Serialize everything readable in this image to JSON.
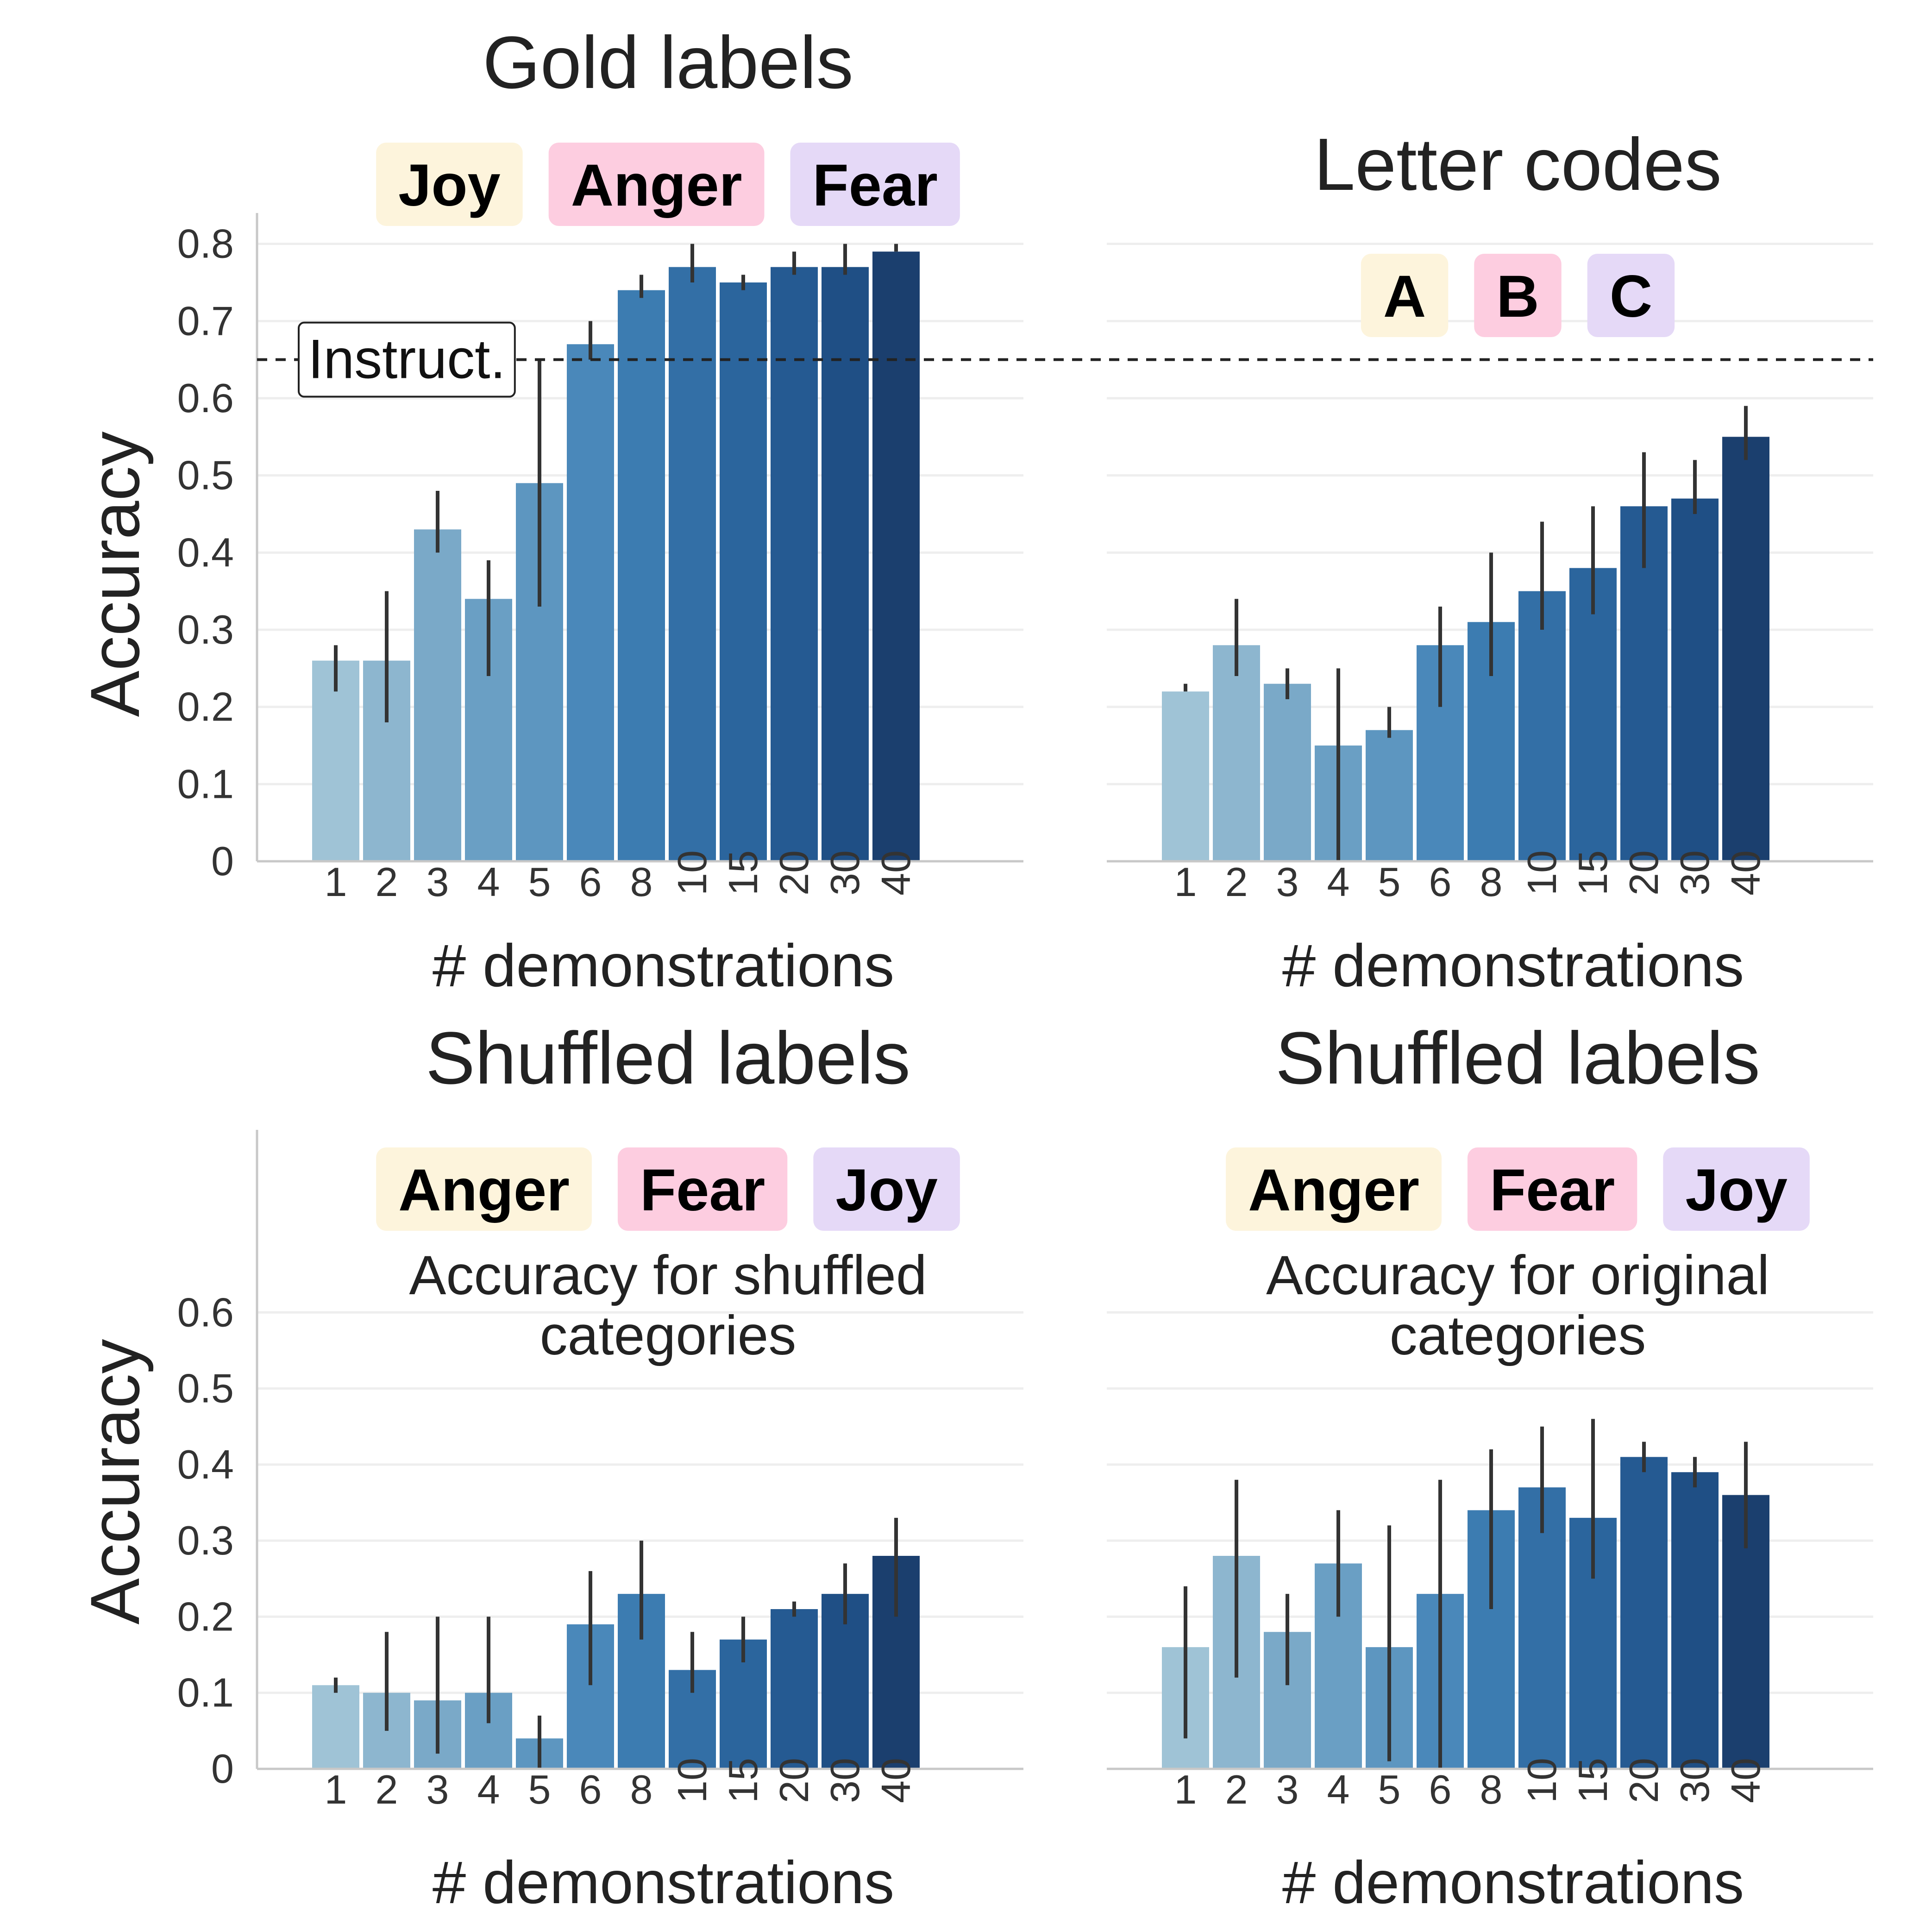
{
  "colors": {
    "bar_ramp": [
      "#9fc3d6",
      "#8db6cf",
      "#7aa9c8",
      "#6a9fc4",
      "#5d96c0",
      "#4a88ba",
      "#3c7cb1",
      "#336fa6",
      "#2b659d",
      "#255a92",
      "#1f4f85",
      "#1b3f6e"
    ],
    "chip_colors": [
      "#fdf4dc",
      "#fdcde0",
      "#e5d9f7"
    ],
    "grid": "#eeeeee",
    "axis": "#c8c8c8",
    "errorbar": "#333333"
  },
  "instruct": {
    "label": "Instruct.",
    "value": 0.65
  },
  "chart_data": [
    {
      "type": "bar",
      "title": "Gold labels",
      "chips": [
        "Joy",
        "Anger",
        "Fear"
      ],
      "subtitle": "",
      "xlabel": "# demonstrations",
      "ylabel": "Accuracy",
      "ylim": [
        0,
        0.84
      ],
      "yticks": [
        0,
        0.1,
        0.2,
        0.3,
        0.4,
        0.5,
        0.6,
        0.7,
        0.8
      ],
      "ytick_labels": [
        "0",
        "0.1",
        "0.2",
        "0.3",
        "0.4",
        "0.5",
        "0.6",
        "0.7",
        "0.8"
      ],
      "categories": [
        "1",
        "2",
        "3",
        "4",
        "5",
        "6",
        "8",
        "10",
        "15",
        "20",
        "30",
        "40"
      ],
      "values": [
        0.26,
        0.26,
        0.43,
        0.34,
        0.49,
        0.67,
        0.74,
        0.77,
        0.75,
        0.77,
        0.77,
        0.79
      ],
      "err_low": [
        0.22,
        0.18,
        0.4,
        0.24,
        0.33,
        0.65,
        0.73,
        0.75,
        0.74,
        0.76,
        0.76,
        0.79
      ],
      "err_high": [
        0.28,
        0.35,
        0.48,
        0.39,
        0.65,
        0.7,
        0.76,
        0.8,
        0.76,
        0.79,
        0.8,
        0.8
      ],
      "grid": true
    },
    {
      "type": "bar",
      "title": "Letter codes",
      "chips": [
        "A",
        "B",
        "C"
      ],
      "subtitle": "",
      "xlabel": "# demonstrations",
      "ylabel": "",
      "ylim": [
        0,
        0.84
      ],
      "yticks": [
        0,
        0.1,
        0.2,
        0.3,
        0.4,
        0.5,
        0.6,
        0.7,
        0.8
      ],
      "ytick_labels": [],
      "categories": [
        "1",
        "2",
        "3",
        "4",
        "5",
        "6",
        "8",
        "10",
        "15",
        "20",
        "30",
        "40"
      ],
      "values": [
        0.22,
        0.28,
        0.23,
        0.15,
        0.17,
        0.28,
        0.31,
        0.35,
        0.38,
        0.46,
        0.47,
        0.55
      ],
      "err_low": [
        0.22,
        0.24,
        0.21,
        0.0,
        0.16,
        0.2,
        0.24,
        0.3,
        0.32,
        0.38,
        0.45,
        0.52
      ],
      "err_high": [
        0.23,
        0.34,
        0.25,
        0.25,
        0.2,
        0.33,
        0.4,
        0.44,
        0.46,
        0.53,
        0.52,
        0.59
      ],
      "grid": true
    },
    {
      "type": "bar",
      "title": "Shuffled labels",
      "chips": [
        "Anger",
        "Fear",
        "Joy"
      ],
      "subtitle": [
        "Accuracy for shuffled",
        "categories"
      ],
      "xlabel": "# demonstrations",
      "ylabel": "Accuracy",
      "ylim": [
        0,
        0.84
      ],
      "yticks": [
        0,
        0.1,
        0.2,
        0.3,
        0.4,
        0.5,
        0.6
      ],
      "ytick_labels": [
        "0",
        "0.1",
        "0.2",
        "0.3",
        "0.4",
        "0.5",
        "0.6"
      ],
      "categories": [
        "1",
        "2",
        "3",
        "4",
        "5",
        "6",
        "8",
        "10",
        "15",
        "20",
        "30",
        "40"
      ],
      "values": [
        0.11,
        0.1,
        0.09,
        0.1,
        0.04,
        0.19,
        0.23,
        0.13,
        0.17,
        0.21,
        0.23,
        0.28
      ],
      "err_low": [
        0.1,
        0.05,
        0.02,
        0.06,
        0.0,
        0.11,
        0.17,
        0.1,
        0.14,
        0.2,
        0.19,
        0.2
      ],
      "err_high": [
        0.12,
        0.18,
        0.2,
        0.2,
        0.07,
        0.26,
        0.3,
        0.18,
        0.2,
        0.22,
        0.27,
        0.33
      ],
      "grid": true
    },
    {
      "type": "bar",
      "title": "Shuffled labels",
      "chips": [
        "Anger",
        "Fear",
        "Joy"
      ],
      "subtitle": [
        "Accuracy for original",
        "categories"
      ],
      "xlabel": "# demonstrations",
      "ylabel": "",
      "ylim": [
        0,
        0.84
      ],
      "yticks": [
        0,
        0.1,
        0.2,
        0.3,
        0.4,
        0.5,
        0.6
      ],
      "ytick_labels": [],
      "categories": [
        "1",
        "2",
        "3",
        "4",
        "5",
        "6",
        "8",
        "10",
        "15",
        "20",
        "30",
        "40"
      ],
      "values": [
        0.16,
        0.28,
        0.18,
        0.27,
        0.16,
        0.23,
        0.34,
        0.37,
        0.33,
        0.41,
        0.39,
        0.36
      ],
      "err_low": [
        0.04,
        0.12,
        0.11,
        0.2,
        0.01,
        0.0,
        0.21,
        0.31,
        0.25,
        0.39,
        0.37,
        0.29
      ],
      "err_high": [
        0.24,
        0.38,
        0.23,
        0.34,
        0.32,
        0.38,
        0.42,
        0.45,
        0.46,
        0.43,
        0.41,
        0.43
      ],
      "grid": true
    }
  ]
}
